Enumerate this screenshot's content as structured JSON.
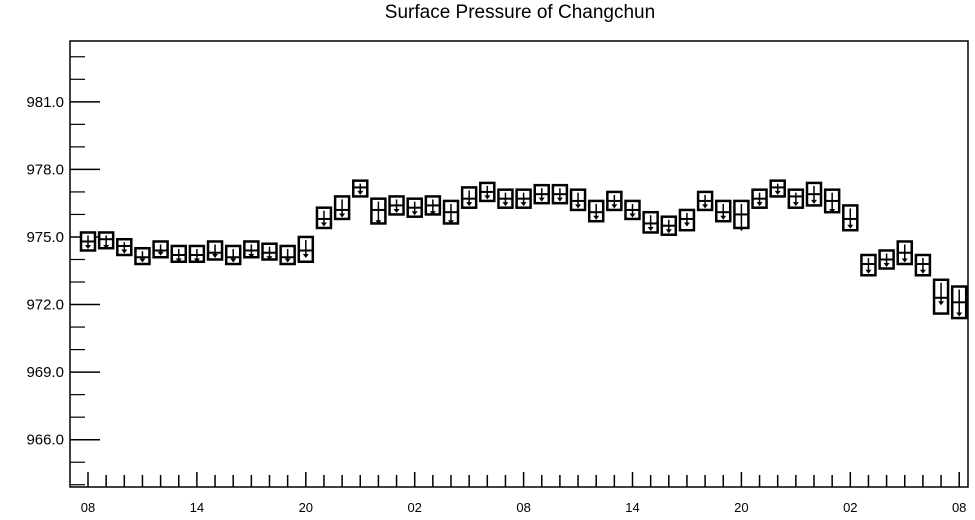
{
  "title": "Surface Pressure of Changchun",
  "chart_data": {
    "type": "boxplot",
    "title": "Surface Pressure of Changchun",
    "xlabel": "",
    "ylabel": "",
    "ylim": [
      963.9,
      983.7
    ],
    "y_ticks": [
      966.0,
      969.0,
      972.0,
      975.0,
      978.0,
      981.0
    ],
    "y_tick_labels": [
      "966.0",
      "969.0",
      "972.0",
      "975.0",
      "978.0",
      "981.0"
    ],
    "x_ticks": [
      0,
      6,
      12,
      18,
      24,
      30,
      36,
      42,
      48
    ],
    "x_tick_labels": [
      "08",
      "14",
      "20",
      "02",
      "08",
      "14",
      "20",
      "02",
      "08"
    ],
    "grid": false,
    "series": [
      {
        "boxes": [
          {
            "x": 0,
            "min": 974.4,
            "q1": 974.4,
            "median": 974.8,
            "q3": 975.2,
            "max": 975.2,
            "mean": 974.6
          },
          {
            "x": 1,
            "min": 974.5,
            "q1": 974.5,
            "median": 974.9,
            "q3": 975.2,
            "max": 975.2,
            "mean": 974.6
          },
          {
            "x": 2,
            "min": 974.2,
            "q1": 974.2,
            "median": 974.6,
            "q3": 974.9,
            "max": 974.9,
            "mean": 974.4
          },
          {
            "x": 3,
            "min": 973.8,
            "q1": 973.8,
            "median": 974.1,
            "q3": 974.5,
            "max": 974.5,
            "mean": 974.0
          },
          {
            "x": 4,
            "min": 974.1,
            "q1": 974.1,
            "median": 974.4,
            "q3": 974.8,
            "max": 974.8,
            "mean": 974.3
          },
          {
            "x": 5,
            "min": 973.9,
            "q1": 973.9,
            "median": 974.2,
            "q3": 974.6,
            "max": 974.6,
            "mean": 974.0
          },
          {
            "x": 6,
            "min": 973.9,
            "q1": 973.9,
            "median": 974.2,
            "q3": 974.6,
            "max": 974.6,
            "mean": 974.0
          },
          {
            "x": 7,
            "min": 974.0,
            "q1": 974.0,
            "median": 974.3,
            "q3": 974.8,
            "max": 974.8,
            "mean": 974.2
          },
          {
            "x": 8,
            "min": 973.8,
            "q1": 973.8,
            "median": 974.1,
            "q3": 974.6,
            "max": 974.6,
            "mean": 974.0
          },
          {
            "x": 9,
            "min": 974.1,
            "q1": 974.1,
            "median": 974.4,
            "q3": 974.8,
            "max": 974.8,
            "mean": 974.2
          },
          {
            "x": 10,
            "min": 974.0,
            "q1": 974.0,
            "median": 974.3,
            "q3": 974.7,
            "max": 974.7,
            "mean": 974.1
          },
          {
            "x": 11,
            "min": 973.8,
            "q1": 973.8,
            "median": 974.1,
            "q3": 974.6,
            "max": 974.6,
            "mean": 974.0
          },
          {
            "x": 12,
            "min": 973.9,
            "q1": 973.9,
            "median": 974.4,
            "q3": 975.0,
            "max": 975.0,
            "mean": 974.2
          },
          {
            "x": 13,
            "min": 975.4,
            "q1": 975.4,
            "median": 975.8,
            "q3": 976.3,
            "max": 976.3,
            "mean": 975.6
          },
          {
            "x": 14,
            "min": 975.8,
            "q1": 975.8,
            "median": 976.2,
            "q3": 976.8,
            "max": 976.8,
            "mean": 976.0
          },
          {
            "x": 15,
            "min": 976.8,
            "q1": 976.8,
            "median": 977.2,
            "q3": 977.5,
            "max": 977.5,
            "mean": 977.0
          },
          {
            "x": 16,
            "min": 975.6,
            "q1": 975.6,
            "median": 976.2,
            "q3": 976.7,
            "max": 976.7,
            "mean": 975.7
          },
          {
            "x": 17,
            "min": 976.0,
            "q1": 976.0,
            "median": 976.4,
            "q3": 976.8,
            "max": 976.8,
            "mean": 976.2
          },
          {
            "x": 18,
            "min": 975.9,
            "q1": 975.9,
            "median": 976.3,
            "q3": 976.7,
            "max": 976.7,
            "mean": 976.1
          },
          {
            "x": 19,
            "min": 976.0,
            "q1": 976.0,
            "median": 976.4,
            "q3": 976.8,
            "max": 976.8,
            "mean": 976.1
          },
          {
            "x": 20,
            "min": 975.6,
            "q1": 975.6,
            "median": 976.1,
            "q3": 976.6,
            "max": 976.6,
            "mean": 975.7
          },
          {
            "x": 21,
            "min": 976.3,
            "q1": 976.3,
            "median": 976.7,
            "q3": 977.2,
            "max": 977.2,
            "mean": 976.5
          },
          {
            "x": 22,
            "min": 976.6,
            "q1": 976.6,
            "median": 977.0,
            "q3": 977.4,
            "max": 977.4,
            "mean": 976.8
          },
          {
            "x": 23,
            "min": 976.3,
            "q1": 976.3,
            "median": 976.7,
            "q3": 977.1,
            "max": 977.1,
            "mean": 976.5
          },
          {
            "x": 24,
            "min": 976.3,
            "q1": 976.3,
            "median": 976.7,
            "q3": 977.1,
            "max": 977.1,
            "mean": 976.5
          },
          {
            "x": 25,
            "min": 976.5,
            "q1": 976.5,
            "median": 976.9,
            "q3": 977.3,
            "max": 977.3,
            "mean": 976.7
          },
          {
            "x": 26,
            "min": 976.5,
            "q1": 976.5,
            "median": 976.9,
            "q3": 977.3,
            "max": 977.3,
            "mean": 976.7
          },
          {
            "x": 27,
            "min": 976.2,
            "q1": 976.2,
            "median": 976.6,
            "q3": 977.1,
            "max": 977.1,
            "mean": 976.4
          },
          {
            "x": 28,
            "min": 975.7,
            "q1": 975.7,
            "median": 976.1,
            "q3": 976.6,
            "max": 976.6,
            "mean": 975.9
          },
          {
            "x": 29,
            "min": 976.2,
            "q1": 976.2,
            "median": 976.6,
            "q3": 977.0,
            "max": 977.0,
            "mean": 976.4
          },
          {
            "x": 30,
            "min": 975.8,
            "q1": 975.8,
            "median": 976.2,
            "q3": 976.6,
            "max": 976.6,
            "mean": 976.0
          },
          {
            "x": 31,
            "min": 975.2,
            "q1": 975.2,
            "median": 975.6,
            "q3": 976.1,
            "max": 976.1,
            "mean": 975.4
          },
          {
            "x": 32,
            "min": 975.1,
            "q1": 975.1,
            "median": 975.5,
            "q3": 975.9,
            "max": 975.9,
            "mean": 975.3
          },
          {
            "x": 33,
            "min": 975.3,
            "q1": 975.3,
            "median": 975.8,
            "q3": 976.2,
            "max": 976.2,
            "mean": 975.6
          },
          {
            "x": 34,
            "min": 976.2,
            "q1": 976.2,
            "median": 976.6,
            "q3": 977.0,
            "max": 977.0,
            "mean": 976.4
          },
          {
            "x": 35,
            "min": 975.7,
            "q1": 975.7,
            "median": 976.1,
            "q3": 976.6,
            "max": 976.6,
            "mean": 975.9
          },
          {
            "x": 36,
            "min": 975.4,
            "q1": 975.4,
            "median": 976.0,
            "q3": 976.6,
            "max": 976.6,
            "mean": 975.4
          },
          {
            "x": 37,
            "min": 976.3,
            "q1": 976.3,
            "median": 976.7,
            "q3": 977.1,
            "max": 977.1,
            "mean": 976.5
          },
          {
            "x": 38,
            "min": 976.8,
            "q1": 976.8,
            "median": 977.2,
            "q3": 977.5,
            "max": 977.5,
            "mean": 977.0
          },
          {
            "x": 39,
            "min": 976.3,
            "q1": 976.3,
            "median": 976.8,
            "q3": 977.1,
            "max": 977.1,
            "mean": 976.5
          },
          {
            "x": 40,
            "min": 976.4,
            "q1": 976.4,
            "median": 976.9,
            "q3": 977.4,
            "max": 977.4,
            "mean": 976.6
          },
          {
            "x": 41,
            "min": 976.1,
            "q1": 976.1,
            "median": 976.6,
            "q3": 977.1,
            "max": 977.1,
            "mean": 976.2
          },
          {
            "x": 42,
            "min": 975.3,
            "q1": 975.3,
            "median": 975.8,
            "q3": 976.4,
            "max": 976.4,
            "mean": 975.5
          },
          {
            "x": 43,
            "min": 973.3,
            "q1": 973.3,
            "median": 973.8,
            "q3": 974.2,
            "max": 974.2,
            "mean": 973.5
          },
          {
            "x": 44,
            "min": 973.6,
            "q1": 973.6,
            "median": 974.0,
            "q3": 974.4,
            "max": 974.4,
            "mean": 973.8
          },
          {
            "x": 45,
            "min": 973.8,
            "q1": 973.8,
            "median": 974.3,
            "q3": 974.8,
            "max": 974.8,
            "mean": 974.0
          },
          {
            "x": 46,
            "min": 973.3,
            "q1": 973.3,
            "median": 973.8,
            "q3": 974.2,
            "max": 974.2,
            "mean": 973.5
          },
          {
            "x": 47,
            "min": 971.6,
            "q1": 971.6,
            "median": 972.3,
            "q3": 973.1,
            "max": 973.1,
            "mean": 972.1
          },
          {
            "x": 48,
            "min": 971.4,
            "q1": 971.4,
            "median": 972.1,
            "q3": 972.8,
            "max": 972.8,
            "mean": 971.6
          }
        ]
      }
    ]
  }
}
